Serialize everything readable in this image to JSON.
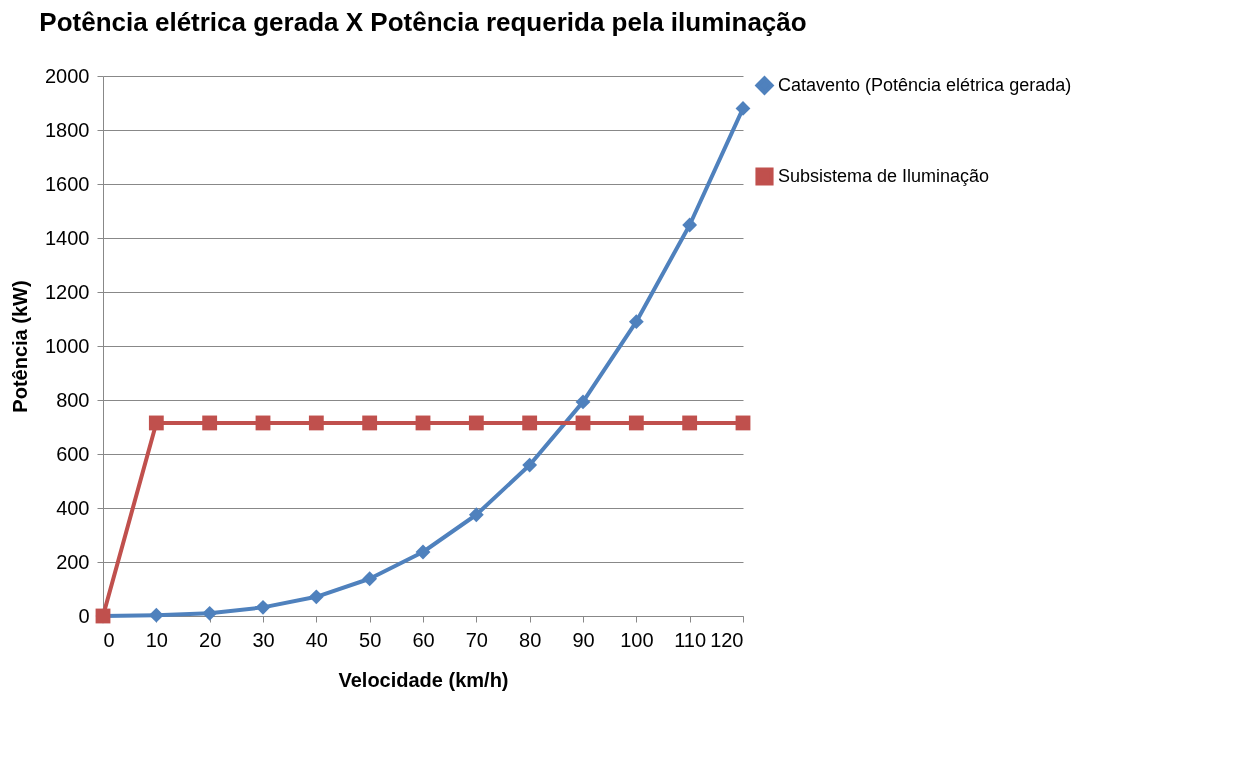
{
  "chart_data": {
    "type": "line",
    "title": "Potência elétrica gerada X Potência requerida pela iluminação",
    "xlabel": "Velocidade (km/h)",
    "ylabel": "Potência (kW)",
    "x": [
      0,
      10,
      20,
      30,
      40,
      50,
      60,
      70,
      80,
      90,
      100,
      110,
      120
    ],
    "series": [
      {
        "name": "Catavento (Potência elétrica gerada)",
        "color": "#4f81bd",
        "marker": "diamond",
        "values": [
          0,
          3,
          10,
          32,
          71,
          138,
          237,
          375,
          559,
          793,
          1090,
          1448,
          1880
        ]
      },
      {
        "name": "Subsistema de Iluminação",
        "color": "#c0504d",
        "marker": "square",
        "values": [
          0,
          715,
          715,
          715,
          715,
          715,
          715,
          715,
          715,
          715,
          715,
          715,
          715
        ]
      }
    ],
    "xlim": [
      0,
      120
    ],
    "xticks": [
      0,
      10,
      20,
      30,
      40,
      50,
      60,
      70,
      80,
      90,
      100,
      110,
      120
    ],
    "ylim": [
      0,
      2000
    ],
    "yticks": [
      0,
      200,
      400,
      600,
      800,
      1000,
      1200,
      1400,
      1600,
      1800,
      2000
    ],
    "grid": "y",
    "legend": "right",
    "line_style": "solid"
  }
}
